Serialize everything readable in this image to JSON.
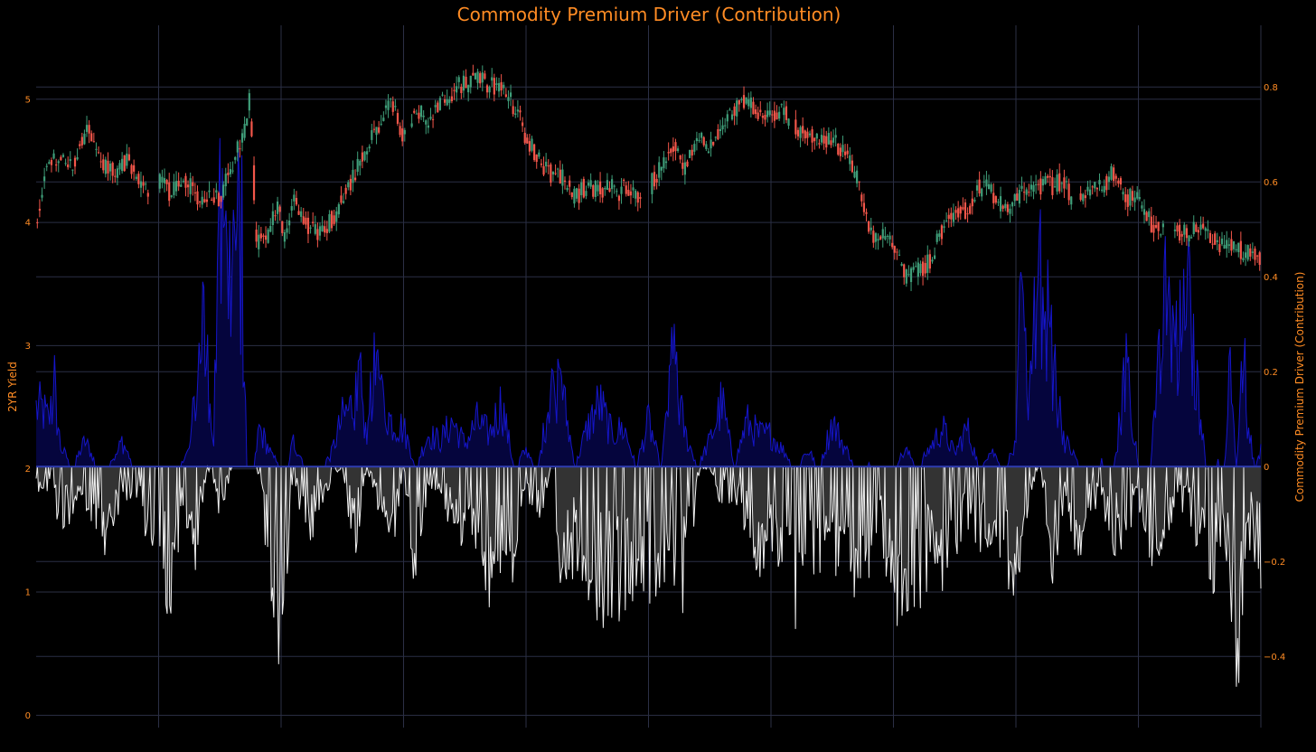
{
  "colors": {
    "background": "#000000",
    "grid": "#2b2f45",
    "text": "#ff8c24",
    "up_candle": "#3f9e79",
    "down_candle": "#f2564a",
    "positive_line": "#1515c8",
    "positive_fill": "#05053d",
    "negative_line": "#f0f0f0",
    "negative_fill": "#333333",
    "zero_line": "#2f3cb0"
  },
  "chart_data": {
    "type": "line",
    "title": "Commodity Premium Driver (Contribution)",
    "ylabel_left": "2YR Yield",
    "ylabel_right": "Commodity Premium Driver (Contribution)",
    "ylim_left": [
      -0.1,
      5.6
    ],
    "ylim_right": [
      -0.55,
      0.93
    ],
    "yticks_left": [
      "0",
      "1",
      "2",
      "3",
      "4",
      "5"
    ],
    "yticks_right": [
      "−0.4",
      "−0.2",
      "0",
      "0.2",
      "0.4",
      "0.6",
      "0.8"
    ],
    "yticks_left_values": [
      0,
      1,
      2,
      3,
      4,
      5
    ],
    "yticks_right_values": [
      -0.4,
      -0.2,
      0,
      0.2,
      0.4,
      0.6,
      0.8
    ],
    "xlabel": "",
    "x_range": [
      0,
      100
    ],
    "legend": "none",
    "grid": true,
    "series": [
      {
        "type": "candlestick",
        "axis": "left",
        "anchors_x": [
          0,
          1,
          3,
          4,
          6,
          7.5,
          9,
          10.5,
          11,
          12,
          13,
          15,
          16.5,
          17.2,
          17.4,
          18,
          18.5,
          19,
          19.8,
          20.2,
          21,
          22,
          23,
          24,
          25,
          26,
          27,
          28,
          29,
          30,
          30.5,
          31,
          32,
          33,
          34.5,
          36,
          38,
          39,
          40,
          41,
          42,
          43,
          43.5,
          44,
          45,
          46,
          47,
          47.5,
          48,
          49,
          50,
          51,
          52,
          53,
          54,
          55,
          56,
          57,
          58,
          59,
          61,
          62,
          63,
          64,
          65,
          66,
          67,
          68,
          69,
          70,
          71,
          72,
          73,
          74,
          75,
          76,
          76.5,
          77,
          78,
          79,
          80,
          81,
          81.6,
          82,
          83,
          84,
          84.5,
          85,
          86,
          87,
          88,
          89,
          90,
          91,
          92,
          93,
          94,
          95,
          96,
          97,
          98,
          99,
          100
        ],
        "anchors_y": [
          4.0,
          4.5,
          4.45,
          4.75,
          4.4,
          4.5,
          4.25,
          4.35,
          4.2,
          4.4,
          4.2,
          4.2,
          4.6,
          4.8,
          5.05,
          3.8,
          3.9,
          3.9,
          4.2,
          3.8,
          4.2,
          4.0,
          3.9,
          4.0,
          4.2,
          4.4,
          4.6,
          4.8,
          5.0,
          4.7,
          4.8,
          4.95,
          4.8,
          5.0,
          5.1,
          5.15,
          5.1,
          4.95,
          4.7,
          4.5,
          4.4,
          4.35,
          4.3,
          4.2,
          4.3,
          4.25,
          4.3,
          4.2,
          4.3,
          4.2,
          4.3,
          4.45,
          4.65,
          4.45,
          4.7,
          4.6,
          4.8,
          4.9,
          5.0,
          4.9,
          4.9,
          4.75,
          4.75,
          4.65,
          4.65,
          4.6,
          4.35,
          3.9,
          3.9,
          3.8,
          3.55,
          3.6,
          3.7,
          3.95,
          4.1,
          4.1,
          4.2,
          4.3,
          4.25,
          4.1,
          4.2,
          4.3,
          4.3,
          4.3,
          4.3,
          4.35,
          4.2,
          4.2,
          4.25,
          4.3,
          4.4,
          4.2,
          4.2,
          4.0,
          3.95,
          3.95,
          3.9,
          3.95,
          3.9,
          3.8,
          3.8,
          3.75,
          3.7
        ],
        "gaps_x": [
          [
            9.3,
            10
          ],
          [
            30.2,
            30.5
          ],
          [
            49.4,
            50
          ],
          [
            49.5,
            50.2
          ],
          [
            61.5,
            62
          ],
          [
            84.6,
            85.2
          ],
          [
            92.2,
            92.8
          ]
        ]
      },
      {
        "type": "area",
        "axis": "right",
        "name": "positive",
        "peaks_x": [
          0.5,
          1,
          1.5,
          2,
          3,
          4,
          5,
          6.5,
          7,
          8,
          8.5,
          9,
          10,
          11.5,
          12.5,
          13,
          13.5,
          14,
          14.5,
          15,
          15.5,
          16,
          16.3,
          16.8,
          17.2,
          17.8,
          18.2,
          19.3,
          20.5,
          21,
          22,
          23,
          24,
          25,
          26,
          26.5,
          27,
          27.5,
          28,
          29,
          30,
          31,
          32,
          33,
          34,
          35,
          36,
          37,
          38,
          39,
          40,
          41,
          42,
          43,
          44,
          45,
          46,
          47,
          48,
          49,
          50,
          51,
          52,
          53,
          54,
          55,
          56,
          57,
          58,
          59,
          60,
          61,
          62,
          63,
          64,
          65,
          66,
          67,
          68,
          69,
          70,
          71,
          72,
          73,
          74,
          75,
          76,
          77,
          78,
          79,
          80,
          80.5,
          81,
          81.5,
          82,
          82.5,
          83,
          84,
          85,
          86,
          87,
          88,
          89,
          90,
          91,
          92,
          93,
          94,
          95,
          95.5,
          96,
          96.5,
          97,
          97.5,
          98,
          98.5,
          99,
          99.5,
          100
        ],
        "peaks_y": [
          0.18,
          0.14,
          0.22,
          0.06,
          0.0,
          0.08,
          0.0,
          0.03,
          0.08,
          0.0,
          0.0,
          0.0,
          0.0,
          0.0,
          0.05,
          0.22,
          0.4,
          0.3,
          0.1,
          0.7,
          0.55,
          0.65,
          0.72,
          0.6,
          0.0,
          0.0,
          0.12,
          0.03,
          0.0,
          0.08,
          0.0,
          0.0,
          0.03,
          0.15,
          0.2,
          0.22,
          0.08,
          0.3,
          0.22,
          0.14,
          0.12,
          0.0,
          0.1,
          0.08,
          0.14,
          0.07,
          0.14,
          0.1,
          0.2,
          0.0,
          0.05,
          0.0,
          0.24,
          0.22,
          0.0,
          0.12,
          0.2,
          0.1,
          0.12,
          0.0,
          0.14,
          0.0,
          0.3,
          0.1,
          0.0,
          0.08,
          0.2,
          0.0,
          0.14,
          0.1,
          0.1,
          0.05,
          0.0,
          0.05,
          0.0,
          0.14,
          0.06,
          0.0,
          0.02,
          0.0,
          0.0,
          0.05,
          0.0,
          0.06,
          0.12,
          0.04,
          0.12,
          0.0,
          0.05,
          0.0,
          0.06,
          0.58,
          0.12,
          0.42,
          0.5,
          0.48,
          0.3,
          0.08,
          0.02,
          0.0,
          0.02,
          0.0,
          0.3,
          0.0,
          0.0,
          0.48,
          0.34,
          0.48,
          0.18,
          0.0,
          0.0,
          0.02,
          0.0,
          0.3,
          0.0,
          0.35,
          0.12,
          0.0,
          0.05
        ],
        "scaled_peaks": true
      },
      {
        "type": "area",
        "axis": "right",
        "name": "negative",
        "troughs_x": [
          1,
          2,
          3,
          4,
          5,
          6,
          7,
          8,
          9,
          10,
          11,
          12,
          13,
          14,
          15,
          16,
          17,
          18,
          19,
          20,
          21,
          22,
          23,
          24,
          25,
          26,
          27,
          28,
          29,
          30,
          31,
          32,
          33,
          34,
          35,
          36,
          37,
          38,
          39,
          40,
          41,
          42,
          43,
          44,
          45,
          46,
          47,
          48,
          49,
          50,
          51,
          52,
          53,
          54,
          55,
          56,
          57,
          58,
          59,
          60,
          61,
          62,
          63,
          64,
          65,
          66,
          67,
          68,
          69,
          70,
          71,
          72,
          73,
          74,
          75,
          76,
          77,
          78,
          79,
          80,
          81,
          82,
          83,
          84,
          85,
          86,
          87,
          88,
          89,
          90,
          91,
          92,
          93,
          94,
          95,
          96,
          97,
          98,
          99,
          100
        ],
        "troughs_y": [
          -0.05,
          -0.15,
          -0.1,
          -0.08,
          -0.14,
          -0.2,
          -0.05,
          -0.1,
          -0.15,
          -0.25,
          -0.34,
          -0.1,
          -0.22,
          -0.0,
          -0.12,
          -0.0,
          -0.0,
          -0.0,
          -0.22,
          -0.42,
          -0.0,
          -0.2,
          -0.1,
          -0.04,
          -0.0,
          -0.2,
          -0.0,
          -0.1,
          -0.2,
          -0.0,
          -0.3,
          -0.05,
          -0.05,
          -0.16,
          -0.2,
          -0.16,
          -0.3,
          -0.2,
          -0.25,
          -0.08,
          -0.15,
          -0.0,
          -0.28,
          -0.2,
          -0.25,
          -0.32,
          -0.3,
          -0.3,
          -0.24,
          -0.28,
          -0.24,
          -0.25,
          -0.35,
          -0.02,
          -0.0,
          -0.1,
          -0.06,
          -0.14,
          -0.22,
          -0.16,
          -0.22,
          -0.35,
          -0.28,
          -0.3,
          -0.26,
          -0.15,
          -0.3,
          -0.26,
          -0.16,
          -0.32,
          -0.3,
          -0.36,
          -0.2,
          -0.26,
          -0.2,
          -0.12,
          -0.18,
          -0.15,
          -0.22,
          -0.27,
          -0.1,
          -0.0,
          -0.28,
          -0.05,
          -0.2,
          -0.1,
          -0.1,
          -0.18,
          -0.15,
          -0.08,
          -0.22,
          -0.16,
          -0.1,
          -0.08,
          -0.2,
          -0.28,
          -0.12,
          -0.5,
          -0.16,
          -0.24
        ]
      }
    ]
  }
}
